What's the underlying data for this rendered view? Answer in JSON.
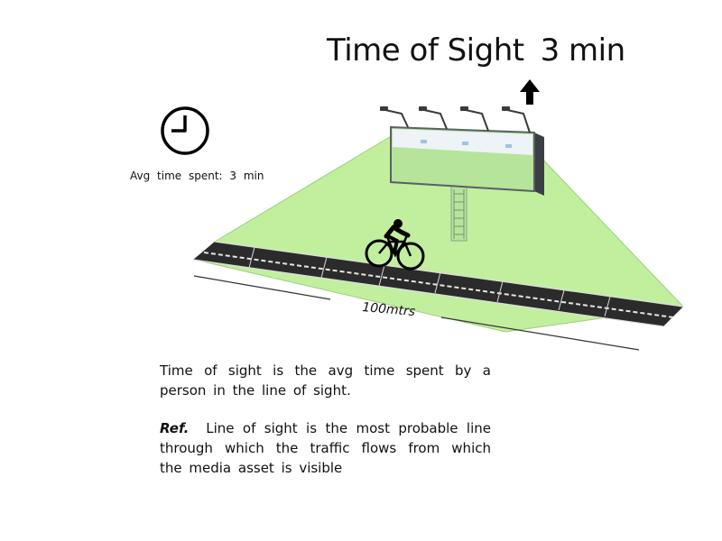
{
  "title": {
    "label": "Time of Sight",
    "value": "3 min"
  },
  "avg_time": {
    "text": "Avg time spent: 3 min"
  },
  "distance": {
    "text": "100mtrs"
  },
  "description": {
    "text": "Time of sight is the avg time spent by a person in the line of sight."
  },
  "reference": {
    "label": "Ref.",
    "text": "Line of sight is the most probable line through which the traffic flows from which the media asset is visible"
  },
  "colors": {
    "sight_area": "#c2ef9e",
    "road": "#2b2b2b",
    "billboard_frame": "#5a6068"
  },
  "icons": [
    "clock-icon",
    "cyclist-icon",
    "billboard-icon",
    "up-arrow-icon"
  ]
}
